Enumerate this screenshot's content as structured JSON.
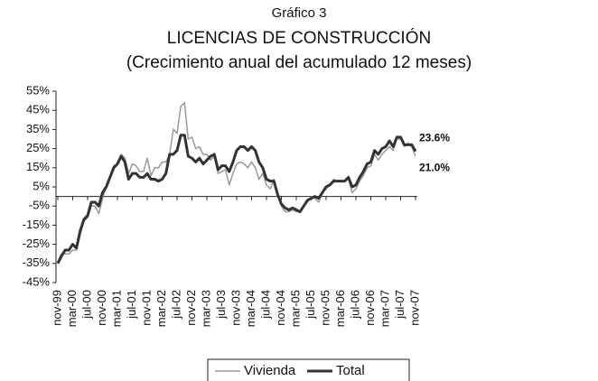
{
  "chart_data": {
    "type": "line",
    "subtitle": "Gráfico 3",
    "title": "LICENCIAS DE CONSTRUCCIÓN",
    "caption": "(Crecimiento anual del acumulado 12 meses)",
    "categories": [
      "nov-99",
      null,
      null,
      null,
      "mar-00",
      null,
      null,
      null,
      "jul-00",
      null,
      null,
      null,
      "nov-00",
      null,
      null,
      null,
      "mar-01",
      null,
      null,
      null,
      "jul-01",
      null,
      null,
      null,
      "nov-01",
      null,
      null,
      null,
      "mar-02",
      null,
      null,
      null,
      "jul-02",
      null,
      null,
      null,
      "nov-02",
      null,
      null,
      null,
      "mar-03",
      null,
      null,
      null,
      "jul-03",
      null,
      null,
      null,
      "nov-03",
      null,
      null,
      null,
      "mar-04",
      null,
      null,
      null,
      "jul-04",
      null,
      null,
      null,
      "nov-04",
      null,
      null,
      null,
      "mar-05",
      null,
      null,
      null,
      "jul-05",
      null,
      null,
      null,
      "nov-05",
      null,
      null,
      null,
      "mar-06",
      null,
      null,
      null,
      "jul-06",
      null,
      null,
      null,
      "nov-06",
      null,
      null,
      null,
      "mar-07",
      null,
      null,
      null,
      "jul-07",
      null,
      null,
      null,
      "nov-07"
    ],
    "series": [
      {
        "name": "Vivienda",
        "color": "#9a9a9a",
        "width": 1.5,
        "end_label": "21.0%",
        "values": [
          -34,
          -30,
          -30,
          -30,
          -28,
          -28,
          -20,
          -13,
          -11,
          -5,
          -5,
          -9,
          -1,
          5,
          10,
          16,
          17,
          22,
          20,
          12,
          17,
          16,
          13,
          13,
          20,
          11,
          15,
          15,
          18,
          18,
          22,
          35,
          33,
          47,
          49,
          30,
          31,
          25,
          26,
          22,
          22,
          19,
          21,
          12,
          13,
          14,
          6,
          12,
          17,
          18,
          17,
          15,
          18,
          15,
          9,
          12,
          6,
          4,
          9,
          1,
          -5,
          -8,
          -8,
          -7,
          -8,
          -8,
          -5,
          -3,
          0,
          -1,
          -3,
          2,
          4,
          6,
          9,
          8,
          8,
          8,
          9,
          2,
          4,
          8,
          11,
          15,
          16,
          22,
          19,
          22,
          24,
          26,
          24,
          30,
          30,
          26,
          28,
          26,
          21.0
        ]
      },
      {
        "name": "Total",
        "color": "#333333",
        "width": 3,
        "end_label": "23.6%",
        "values": [
          -35,
          -31,
          -28,
          -28,
          -25,
          -27,
          -18,
          -12,
          -10,
          -3,
          -3,
          -5,
          2,
          5,
          10,
          15,
          17,
          21,
          18,
          9,
          12,
          12,
          10,
          10,
          12,
          9,
          9,
          8,
          9,
          12,
          22,
          22,
          24,
          32,
          32,
          21,
          20,
          18,
          20,
          17,
          19,
          21,
          22,
          14,
          16,
          16,
          13,
          18,
          24,
          26,
          26,
          24,
          26,
          24,
          18,
          15,
          9,
          8,
          8,
          1,
          -4,
          -6,
          -7,
          -6,
          -7,
          -8,
          -5,
          -2,
          -1,
          0,
          -1,
          2,
          5,
          6,
          8,
          8,
          8,
          8,
          10,
          5,
          6,
          10,
          13,
          17,
          18,
          24,
          22,
          25,
          26,
          29,
          26,
          31,
          31,
          27,
          27,
          27,
          23.6
        ]
      }
    ],
    "ylim": [
      -45,
      55
    ],
    "yticks": [
      {
        "value": -45,
        "label": "-45%"
      },
      {
        "value": -35,
        "label": "-35%"
      },
      {
        "value": -25,
        "label": "-25%"
      },
      {
        "value": -15,
        "label": "-15%"
      },
      {
        "value": -5,
        "label": "-5%"
      },
      {
        "value": 5,
        "label": "5%"
      },
      {
        "value": 15,
        "label": "15%"
      },
      {
        "value": 25,
        "label": "25%"
      },
      {
        "value": 35,
        "label": "35%"
      },
      {
        "value": 45,
        "label": "45%"
      },
      {
        "value": 55,
        "label": "55%"
      }
    ],
    "grid": false,
    "legend": "bottom"
  }
}
